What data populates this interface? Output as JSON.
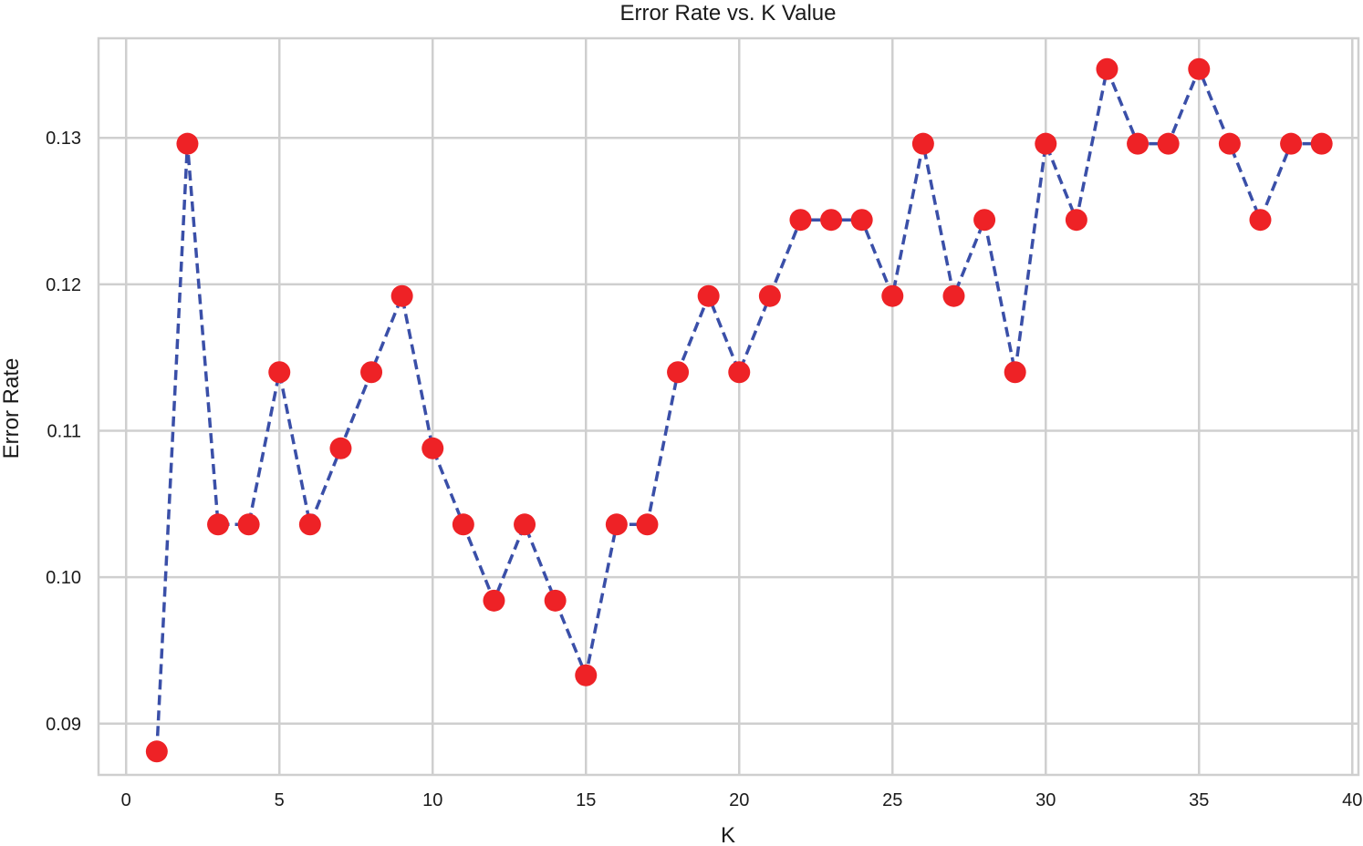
{
  "chart_data": {
    "type": "line",
    "title": "Error Rate vs. K Value",
    "xlabel": "K",
    "ylabel": "Error Rate",
    "xlim": [
      -0.9,
      40.2
    ],
    "ylim": [
      0.0865,
      0.1368
    ],
    "xticks": [
      0,
      5,
      10,
      15,
      20,
      25,
      30,
      35,
      40
    ],
    "xtick_labels": [
      "0",
      "5",
      "10",
      "15",
      "20",
      "25",
      "30",
      "35",
      "40"
    ],
    "yticks": [
      0.09,
      0.1,
      0.11,
      0.12,
      0.13
    ],
    "ytick_labels": [
      "0.09",
      "0.10",
      "0.11",
      "0.12",
      "0.13"
    ],
    "grid": true,
    "line_color": "#3a4fa8",
    "line_style": "dashed",
    "marker_color": "#ee2226",
    "x": [
      1,
      2,
      3,
      4,
      5,
      6,
      7,
      8,
      9,
      10,
      11,
      12,
      13,
      14,
      15,
      16,
      17,
      18,
      19,
      20,
      21,
      22,
      23,
      24,
      25,
      26,
      27,
      28,
      29,
      30,
      31,
      32,
      33,
      34,
      35,
      36,
      37,
      38,
      39
    ],
    "series": [
      {
        "values": [
          0.0881,
          0.1296,
          0.1036,
          0.1036,
          0.114,
          0.1036,
          0.1088,
          0.114,
          0.1192,
          0.1088,
          0.1036,
          0.0984,
          0.1036,
          0.0984,
          0.0933,
          0.1036,
          0.1036,
          0.114,
          0.1192,
          0.114,
          0.1192,
          0.1244,
          0.1244,
          0.1244,
          0.1192,
          0.1296,
          0.1192,
          0.1244,
          0.114,
          0.1296,
          0.1244,
          0.1347,
          0.1296,
          0.1296,
          0.1347,
          0.1296,
          0.1244,
          0.1296,
          0.1296
        ]
      }
    ]
  }
}
